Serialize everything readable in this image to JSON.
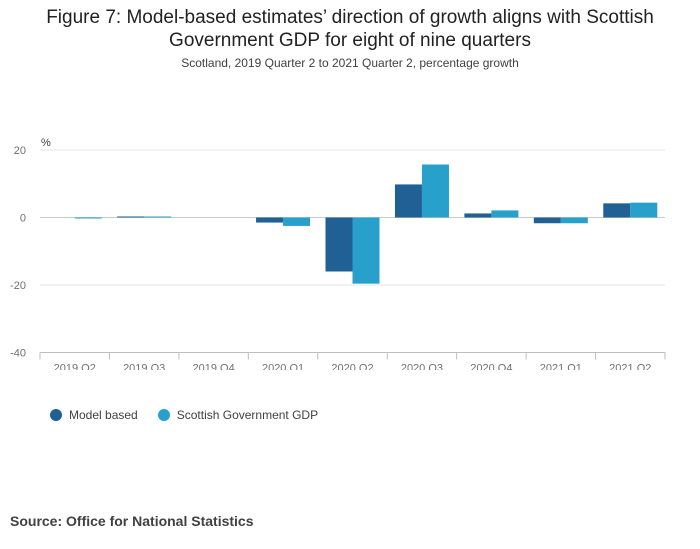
{
  "header": {
    "title": "Figure 7: Model-based estimates’ direction of growth aligns with Scottish Government GDP for eight of nine quarters",
    "subtitle": "Scotland, 2019 Quarter 2 to 2021 Quarter 2, percentage growth"
  },
  "footer": {
    "source": "Source: Office for National Statistics"
  },
  "colors": {
    "model": "#206095",
    "scot": "#27a0cc",
    "grid": "#e6e6e6",
    "axis": "#bebebe"
  },
  "chart_data": {
    "type": "bar",
    "title": "Figure 7: Model-based estimates’ direction of growth aligns with Scottish Government GDP for eight of nine quarters",
    "subtitle": "Scotland, 2019 Quarter 2 to 2021 Quarter 2, percentage growth",
    "ylabel": "%",
    "xlabel": "",
    "ylim": [
      -40,
      20
    ],
    "yticks": [
      20,
      0,
      -20,
      -40
    ],
    "grid": true,
    "legend": "bottom-left",
    "categories": [
      "2019 Q2",
      "2019 Q3",
      "2019 Q4",
      "2020 Q1",
      "2020 Q2",
      "2020 Q3",
      "2020 Q4",
      "2021 Q1",
      "2021 Q2"
    ],
    "series": [
      {
        "name": "Model based",
        "color": "#206095",
        "values": [
          0.0,
          0.3,
          0.0,
          -1.5,
          -16.0,
          9.8,
          1.2,
          -1.7,
          4.2
        ]
      },
      {
        "name": "Scottish Government GDP",
        "color": "#27a0cc",
        "values": [
          -0.3,
          0.3,
          0.0,
          -2.5,
          -19.6,
          15.7,
          2.1,
          -1.7,
          4.4
        ]
      }
    ]
  }
}
